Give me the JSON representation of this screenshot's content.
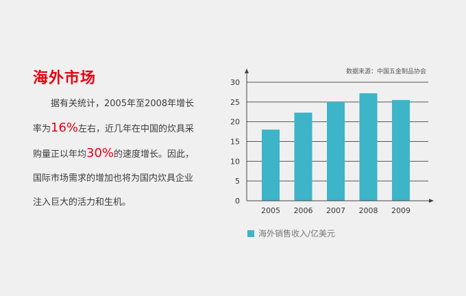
{
  "header": {
    "title": "海外市场"
  },
  "body": {
    "line1": "据有关统计，2005年至2008年增长",
    "line2_pre": "率为",
    "line2_hl": "16%",
    "line2_post": "左右，近几年在中国的炊具采",
    "line3_pre": "购量正以年均",
    "line3_hl": "30%",
    "line3_post": "的速度增长。因此，",
    "line4": "国际市场需求的增加也将为国内炊具企业",
    "line5": "注入巨大的活力和生机。"
  },
  "colors": {
    "accent": "#e60012",
    "bar": "#3db4c8"
  },
  "chart_data": {
    "type": "bar",
    "source_note": "数据来源：中国五金制品协会",
    "categories": [
      "2005",
      "2006",
      "2007",
      "2008",
      "2009"
    ],
    "series": [
      {
        "name": "海外销售收入/亿美元",
        "values": [
          18,
          22.3,
          25,
          27.2,
          25.5
        ]
      }
    ],
    "ylim": [
      0,
      30
    ],
    "yticks": [
      "0",
      "5",
      "10",
      "15",
      "20",
      "25",
      "30"
    ],
    "grid": true,
    "legend_position": "bottom"
  }
}
